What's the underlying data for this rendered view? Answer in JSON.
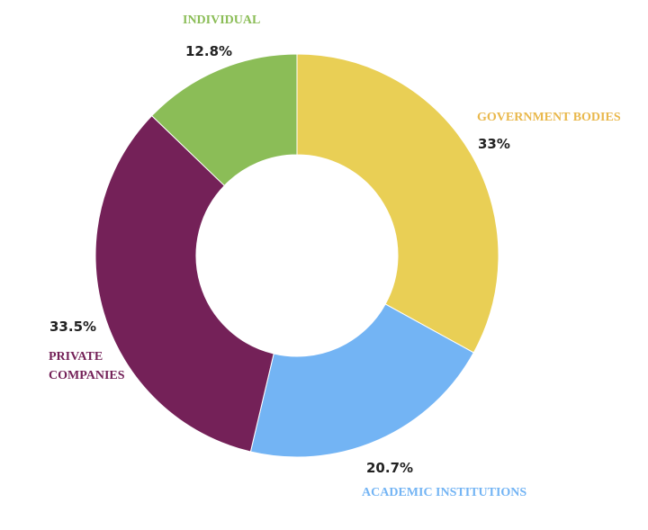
{
  "chart_data": {
    "type": "pie",
    "variant": "donut",
    "slices": [
      {
        "key": "government",
        "label": "GOVERNMENT BODIES",
        "value": 33,
        "value_label": "33%",
        "color": "#E9CF55"
      },
      {
        "key": "academic",
        "label": "ACADEMIC INSTITUTIONS",
        "value": 20.7,
        "value_label": "20.7%",
        "color": "#73B4F4"
      },
      {
        "key": "private",
        "label": "PRIVATE\nCOMPANIES",
        "value": 33.5,
        "value_label": "33.5%",
        "color": "#742158"
      },
      {
        "key": "individual",
        "label": "INDIVIDUAL",
        "value": 12.8,
        "value_label": "12.8%",
        "color": "#8BBD57"
      }
    ],
    "start_angle": "12 o'clock",
    "direction": "clockwise",
    "legend": "none"
  }
}
